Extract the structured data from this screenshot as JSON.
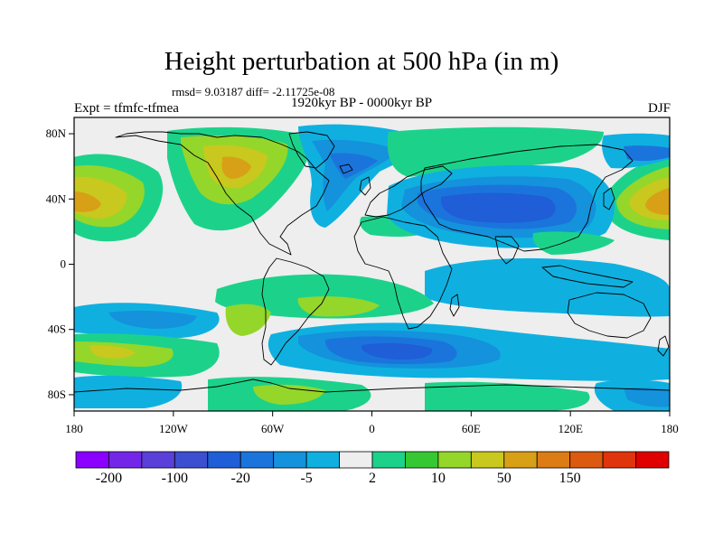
{
  "title": "Height perturbation at 500 hPa (in m)",
  "stats": "rmsd= 9.03187 diff= -2.11725e-08",
  "left_label": "Expt = tfmfc-tfmea",
  "center_label": "1920kyr BP - 0000kyr BP",
  "right_label": "DJF",
  "lat_ticks": [
    {
      "value": 80,
      "label": "80N"
    },
    {
      "value": 40,
      "label": "40N"
    },
    {
      "value": 0,
      "label": "0"
    },
    {
      "value": -40,
      "label": "40S"
    },
    {
      "value": -80,
      "label": "80S"
    }
  ],
  "lon_ticks": [
    {
      "value": -180,
      "label": "180"
    },
    {
      "value": -120,
      "label": "120W"
    },
    {
      "value": -60,
      "label": "60W"
    },
    {
      "value": 0,
      "label": "0"
    },
    {
      "value": 60,
      "label": "60E"
    },
    {
      "value": 120,
      "label": "120E"
    },
    {
      "value": 180,
      "label": "180"
    }
  ],
  "colorbar": {
    "colors": [
      "#8b00ff",
      "#7426e8",
      "#5a3fd8",
      "#3c4fd0",
      "#1f5ed6",
      "#1b74dc",
      "#1492dc",
      "#0fb0e0",
      "#eeeeee",
      "#1cd28a",
      "#36c832",
      "#95d62a",
      "#c8c81e",
      "#d8a016",
      "#dc7c14",
      "#dc5a10",
      "#e0340c",
      "#e00000"
    ],
    "labels": [
      {
        "boundary": 1,
        "text": "-200"
      },
      {
        "boundary": 3,
        "text": "-100"
      },
      {
        "boundary": 5,
        "text": "-20"
      },
      {
        "boundary": 7,
        "text": "-5"
      },
      {
        "boundary": 9,
        "text": "2"
      },
      {
        "boundary": 11,
        "text": "10"
      },
      {
        "boundary": 13,
        "text": "50"
      },
      {
        "boundary": 15,
        "text": "150"
      }
    ]
  },
  "colors": {
    "background": "#eeeeee",
    "coast": "#000000",
    "blue_dark": "#1f5ed6",
    "blue_mid": "#1492dc",
    "cyan": "#0fb0e0",
    "green": "#1cd28a",
    "green_mid": "#36c832",
    "yellow_green": "#95d62a",
    "yellow": "#c8c81e",
    "orange": "#d8a016"
  }
}
